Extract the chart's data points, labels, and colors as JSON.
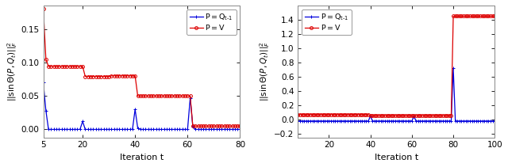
{
  "left": {
    "xlim": [
      5,
      80
    ],
    "ylim": [
      -0.012,
      0.185
    ],
    "yticks": [
      0.0,
      0.05,
      0.1,
      0.15
    ],
    "xticks": [
      5,
      20,
      40,
      60,
      80
    ],
    "xlabel": "Iteration t",
    "ylabel": "||sinθ(P, Q_t)||²_F",
    "blue_color": "#0000dd",
    "red_color": "#dd0000",
    "bg_color": "#f8f8f8"
  },
  "right": {
    "xlim": [
      5,
      100
    ],
    "ylim": [
      -0.25,
      1.6
    ],
    "yticks": [
      -0.2,
      0.0,
      0.2,
      0.4,
      0.6,
      0.8,
      1.0,
      1.2,
      1.4
    ],
    "xticks": [
      20,
      40,
      60,
      80,
      100
    ],
    "xlabel": "Iteration t",
    "ylabel": "||sinθ(P, Q_t)||²_F",
    "blue_color": "#0000dd",
    "red_color": "#dd0000",
    "bg_color": "#f8f8f8"
  }
}
